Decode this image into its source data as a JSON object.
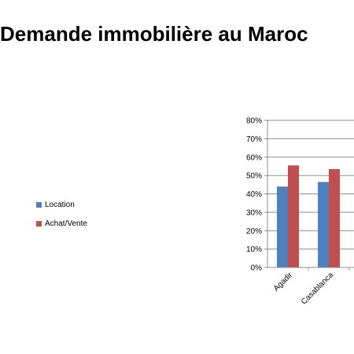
{
  "title": "Demande immobilière au Maroc",
  "chart_data": {
    "type": "bar",
    "title": "Demande immobilière au Maroc",
    "categories": [
      "Agadir",
      "Casablanca"
    ],
    "series": [
      {
        "name": "Location",
        "values": [
          44,
          46.5
        ],
        "color": "#4F81BD"
      },
      {
        "name": "Achat/Vente",
        "values": [
          55.5,
          53.5
        ],
        "color": "#C0504D"
      }
    ],
    "ylim": [
      0,
      80
    ],
    "y_ticks": [
      "0%",
      "10%",
      "20%",
      "30%",
      "40%",
      "50%",
      "60%",
      "70%",
      "80%"
    ],
    "grid": true,
    "legend": "left",
    "xlabel": "",
    "ylabel": ""
  }
}
